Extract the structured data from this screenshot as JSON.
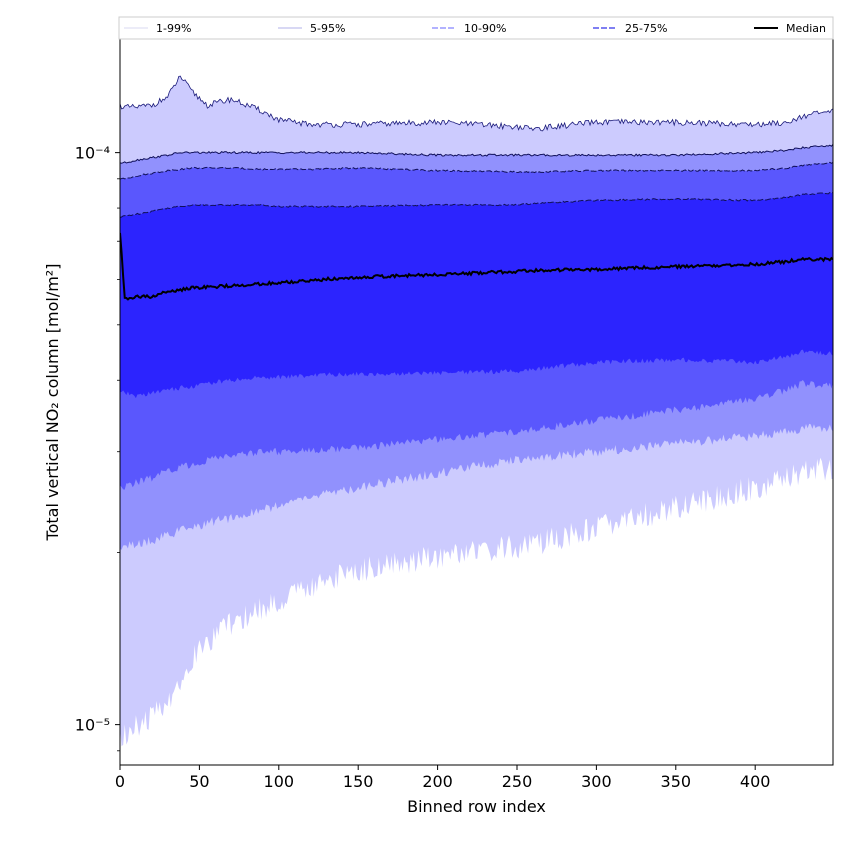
{
  "chart_data": {
    "type": "area",
    "title": "",
    "xlabel": "Binned row index",
    "ylabel": "Total vertical NO₂ column [mol/m²]",
    "xlim": [
      0,
      449
    ],
    "ylim": [
      8.5e-06,
      0.000158
    ],
    "yscale": "log",
    "x_ticks": [
      0,
      50,
      100,
      150,
      200,
      250,
      300,
      350,
      400
    ],
    "y_major_ticks": [
      1e-05,
      0.0001
    ],
    "y_tick_labels": [
      "10⁻⁵",
      "10⁻⁴"
    ],
    "grid": false,
    "legend_position": "top, above plot",
    "legend": [
      "1-99%",
      "5-95%",
      "10-90%",
      "25-75%",
      "Median"
    ],
    "colors": {
      "band_1_99": "#cccbfe",
      "band_5_95": "#9191fd",
      "band_10_90": "#5a57fd",
      "band_25_75": "#2c24fe",
      "line_1_99": "#c8c8f0",
      "line_5_95": "#2828a0",
      "line_10_90": "#8888ff",
      "line_25_75": "#6666ee",
      "median": "#000000"
    },
    "x": [
      0,
      3,
      10,
      20,
      30,
      38,
      45,
      55,
      70,
      90,
      100,
      120,
      150,
      200,
      250,
      260,
      300,
      350,
      400,
      420,
      430,
      449
    ],
    "series": [
      {
        "name": "1-99%",
        "lower": [
          9.6e-06,
          9.6e-06,
          9.9e-06,
          1.03e-05,
          1.1e-05,
          1.2e-05,
          1.3e-05,
          1.4e-05,
          1.5e-05,
          1.6e-05,
          1.64e-05,
          1.75e-05,
          1.86e-05,
          1.97e-05,
          2.05e-05,
          2.07e-05,
          2.2e-05,
          2.4e-05,
          2.6e-05,
          2.7e-05,
          2.78e-05,
          2.8e-05
        ],
        "upper": [
          0.000121,
          0.00012,
          0.00012,
          0.000121,
          0.000125,
          0.000136,
          0.000128,
          0.000121,
          0.000124,
          0.000118,
          0.000114,
          0.000112,
          0.000112,
          0.000113,
          0.000111,
          0.00011,
          0.000113,
          0.000113,
          0.000112,
          0.000113,
          0.000116,
          0.000118
        ]
      },
      {
        "name": "5-95%",
        "lower": [
          2.05e-05,
          2.05e-05,
          2.06e-05,
          2.1e-05,
          2.15e-05,
          2.18e-05,
          2.2e-05,
          2.25e-05,
          2.3e-05,
          2.38e-05,
          2.42e-05,
          2.5e-05,
          2.6e-05,
          2.75e-05,
          2.9e-05,
          2.92e-05,
          3e-05,
          3.1e-05,
          3.2e-05,
          3.25e-05,
          3.3e-05,
          3.3e-05
        ],
        "upper": [
          9.6e-05,
          9.6e-05,
          9.7e-05,
          9.8e-05,
          9.9e-05,
          0.0001,
          0.0001,
          0.0001,
          0.0001,
          0.0001,
          0.0001,
          0.0001,
          0.0001,
          9.9e-05,
          9.9e-05,
          9.9e-05,
          9.9e-05,
          9.9e-05,
          0.0001,
          0.000101,
          0.000102,
          0.000103
        ]
      },
      {
        "name": "10-90%",
        "lower": [
          2.6e-05,
          2.6e-05,
          2.65e-05,
          2.7e-05,
          2.78e-05,
          2.82e-05,
          2.85e-05,
          2.9e-05,
          2.95e-05,
          3e-05,
          3e-05,
          3.02e-05,
          3.05e-05,
          3.15e-05,
          3.25e-05,
          3.28e-05,
          3.4e-05,
          3.55e-05,
          3.7e-05,
          3.85e-05,
          3.95e-05,
          3.9e-05
        ],
        "upper": [
          9e-05,
          9e-05,
          9.1e-05,
          9.2e-05,
          9.3e-05,
          9.35e-05,
          9.4e-05,
          9.4e-05,
          9.4e-05,
          9.35e-05,
          9.35e-05,
          9.35e-05,
          9.4e-05,
          9.3e-05,
          9.25e-05,
          9.25e-05,
          9.3e-05,
          9.3e-05,
          9.3e-05,
          9.4e-05,
          9.5e-05,
          9.6e-05
        ]
      },
      {
        "name": "25-75%",
        "lower": [
          3.8e-05,
          3.8e-05,
          3.75e-05,
          3.8e-05,
          3.85e-05,
          3.88e-05,
          3.9e-05,
          3.95e-05,
          4e-05,
          4.05e-05,
          4.05e-05,
          4.08e-05,
          4.1e-05,
          4.12e-05,
          4.15e-05,
          4.18e-05,
          4.3e-05,
          4.35e-05,
          4.3e-05,
          4.4e-05,
          4.5e-05,
          4.45e-05
        ],
        "upper": [
          7.7e-05,
          7.75e-05,
          7.8e-05,
          7.9e-05,
          8e-05,
          8.05e-05,
          8.1e-05,
          8.1e-05,
          8.1e-05,
          8.1e-05,
          8.05e-05,
          8.05e-05,
          8.05e-05,
          8.1e-05,
          8.1e-05,
          8.15e-05,
          8.25e-05,
          8.3e-05,
          8.25e-05,
          8.35e-05,
          8.45e-05,
          8.5e-05
        ]
      },
      {
        "name": "Median",
        "values": [
          7.2e-05,
          5.55e-05,
          5.6e-05,
          5.6e-05,
          5.72e-05,
          5.76e-05,
          5.8e-05,
          5.82e-05,
          5.85e-05,
          5.9e-05,
          5.92e-05,
          5.98e-05,
          6.06e-05,
          6.12e-05,
          6.2e-05,
          6.22e-05,
          6.25e-05,
          6.32e-05,
          6.38e-05,
          6.45e-05,
          6.52e-05,
          6.5e-05
        ]
      }
    ]
  }
}
